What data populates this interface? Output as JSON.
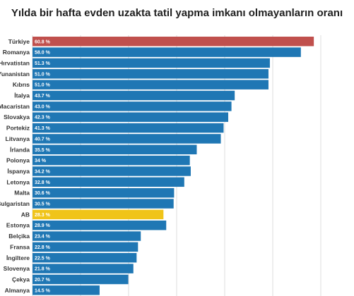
{
  "chart_data": {
    "type": "bar",
    "orientation": "horizontal",
    "title": "Yılda bir hafta evden uzakta tatil yapma imkanı olmayanların oranı",
    "categories": [
      "Türkiye",
      "Romanya",
      "Hırvatistan",
      "Yunanistan",
      "Kıbrıs",
      "İtalya",
      "Macaristan",
      "Slovakya",
      "Portekiz",
      "Litvanya",
      "İrlanda",
      "Polonya",
      "İspanya",
      "Letonya",
      "Malta",
      "Bulgaristan",
      "AB",
      "Estonya",
      "Belçika",
      "Fransa",
      "İngiltere",
      "Slovenya",
      "Çekya",
      "Almanya"
    ],
    "values": [
      60.8,
      58.0,
      51.3,
      51.0,
      51.0,
      43.7,
      43.0,
      42.3,
      41.3,
      40.7,
      35.5,
      34,
      34.2,
      32.8,
      30.6,
      30.5,
      28.3,
      28.9,
      23.4,
      22.8,
      22.5,
      21.8,
      20.7,
      14.5
    ],
    "value_labels": [
      "60.8 %",
      "58.0 %",
      "51.3 %",
      "51.0 %",
      "51.0 %",
      "43.7 %",
      "43.0 %",
      "42.3 %",
      "41.3 %",
      "40.7 %",
      "35.5 %",
      "34 %",
      "34.2 %",
      "32.8 %",
      "30.6 %",
      "30.5 %",
      "28.3 %",
      "28.9 %",
      "23.4 %",
      "22.8 %",
      "22.5 %",
      "21.8 %",
      "20.7 %",
      "14.5 %"
    ],
    "highlight_colors": {
      "Türkiye": "#c0504d",
      "AB": "#f0c419"
    },
    "default_color": "#1f77b4",
    "xlim": [
      0,
      62
    ],
    "grid": true
  }
}
